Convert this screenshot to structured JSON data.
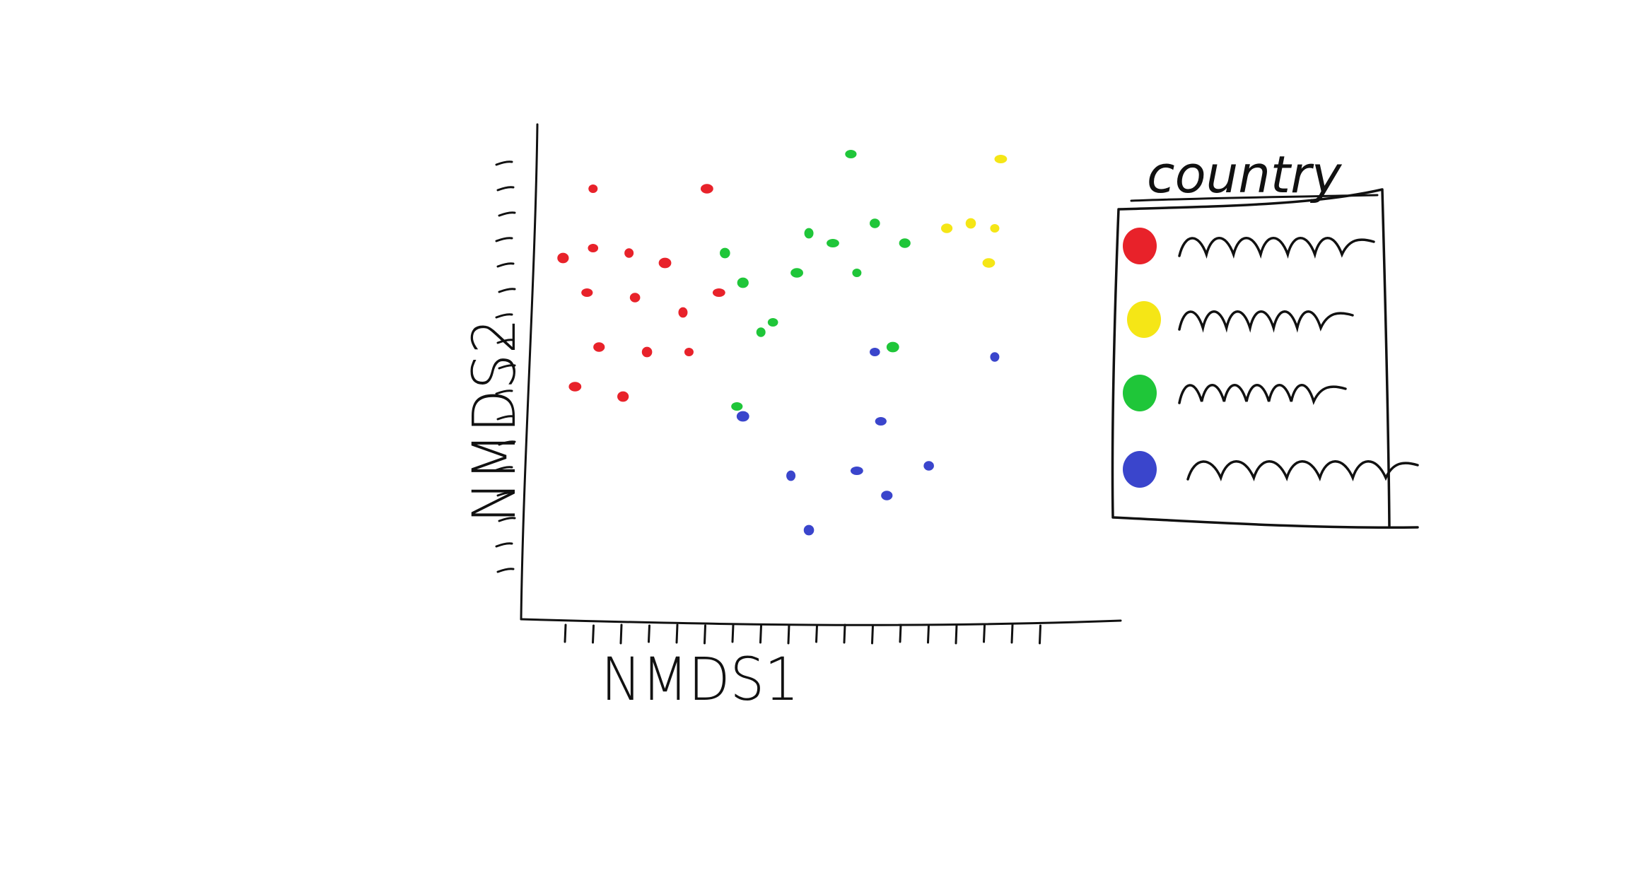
{
  "chart_data": {
    "type": "scatter",
    "xlabel": "NMDS1",
    "ylabel": "NMDS2",
    "legend_title": "country",
    "legend_position": "right",
    "grid": false,
    "x_unit_note": "",
    "series": [
      {
        "name": "",
        "color": "#e8222a",
        "points": [
          [
            0.12,
            0.87
          ],
          [
            0.31,
            0.87
          ],
          [
            0.07,
            0.73
          ],
          [
            0.12,
            0.75
          ],
          [
            0.18,
            0.74
          ],
          [
            0.24,
            0.72
          ],
          [
            0.11,
            0.66
          ],
          [
            0.19,
            0.65
          ],
          [
            0.27,
            0.62
          ],
          [
            0.33,
            0.66
          ],
          [
            0.13,
            0.55
          ],
          [
            0.21,
            0.54
          ],
          [
            0.28,
            0.54
          ],
          [
            0.09,
            0.47
          ],
          [
            0.17,
            0.45
          ]
        ]
      },
      {
        "name": "",
        "color": "#f5e616",
        "points": [
          [
            0.8,
            0.93
          ],
          [
            0.71,
            0.79
          ],
          [
            0.75,
            0.8
          ],
          [
            0.79,
            0.79
          ],
          [
            0.78,
            0.72
          ]
        ]
      },
      {
        "name": "",
        "color": "#1fc639",
        "points": [
          [
            0.55,
            0.94
          ],
          [
            0.59,
            0.8
          ],
          [
            0.48,
            0.78
          ],
          [
            0.52,
            0.76
          ],
          [
            0.64,
            0.76
          ],
          [
            0.34,
            0.74
          ],
          [
            0.56,
            0.7
          ],
          [
            0.46,
            0.7
          ],
          [
            0.37,
            0.68
          ],
          [
            0.42,
            0.6
          ],
          [
            0.4,
            0.58
          ],
          [
            0.62,
            0.55
          ],
          [
            0.36,
            0.43
          ]
        ]
      },
      {
        "name": "",
        "color": "#3a45cc",
        "points": [
          [
            0.59,
            0.54
          ],
          [
            0.79,
            0.53
          ],
          [
            0.37,
            0.41
          ],
          [
            0.6,
            0.4
          ],
          [
            0.68,
            0.31
          ],
          [
            0.45,
            0.29
          ],
          [
            0.56,
            0.3
          ],
          [
            0.61,
            0.25
          ],
          [
            0.48,
            0.18
          ]
        ]
      }
    ]
  }
}
